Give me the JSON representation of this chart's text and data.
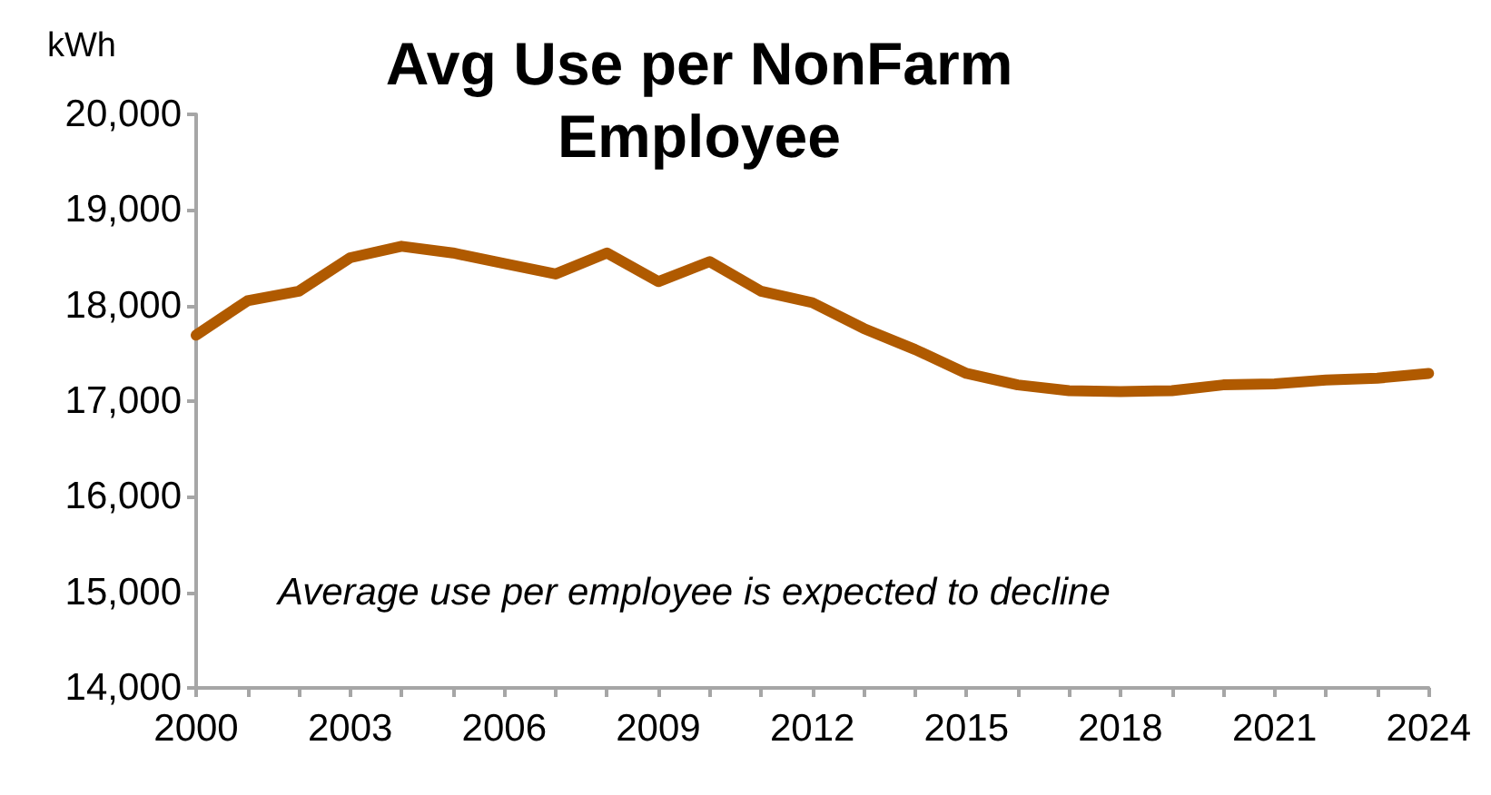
{
  "chart_data": {
    "type": "line",
    "title": "Avg Use per NonFarm\nEmployee",
    "ylabel": "kWh",
    "categories": [
      "2000",
      null,
      null,
      "2003",
      null,
      null,
      "2006",
      null,
      null,
      "2009",
      null,
      null,
      "2012",
      null,
      null,
      "2015",
      null,
      null,
      "2018",
      null,
      null,
      "2021",
      null,
      null,
      "2024"
    ],
    "series": [
      {
        "color": "#b05a00",
        "values": [
          17690,
          18050,
          18150,
          18500,
          18620,
          18550,
          18440,
          18330,
          18550,
          18250,
          18460,
          18150,
          18030,
          17760,
          17540,
          17290,
          17170,
          17110,
          17100,
          17110,
          17170,
          17180,
          17220,
          17240,
          17290
        ]
      }
    ],
    "ylim": [
      14000,
      20000
    ],
    "yticks": [
      {
        "value": 14000,
        "label": "14,000"
      },
      {
        "value": 15000,
        "label": "15,000"
      },
      {
        "value": 16000,
        "label": "16,000"
      },
      {
        "value": 17000,
        "label": "17,000"
      },
      {
        "value": 18000,
        "label": "18,000"
      },
      {
        "value": 19000,
        "label": "19,000"
      },
      {
        "value": 20000,
        "label": "20,000"
      }
    ],
    "annotations": [
      "Average use per employee is expected to decline"
    ],
    "grid": false,
    "marker": "none",
    "line_style": "solid"
  }
}
